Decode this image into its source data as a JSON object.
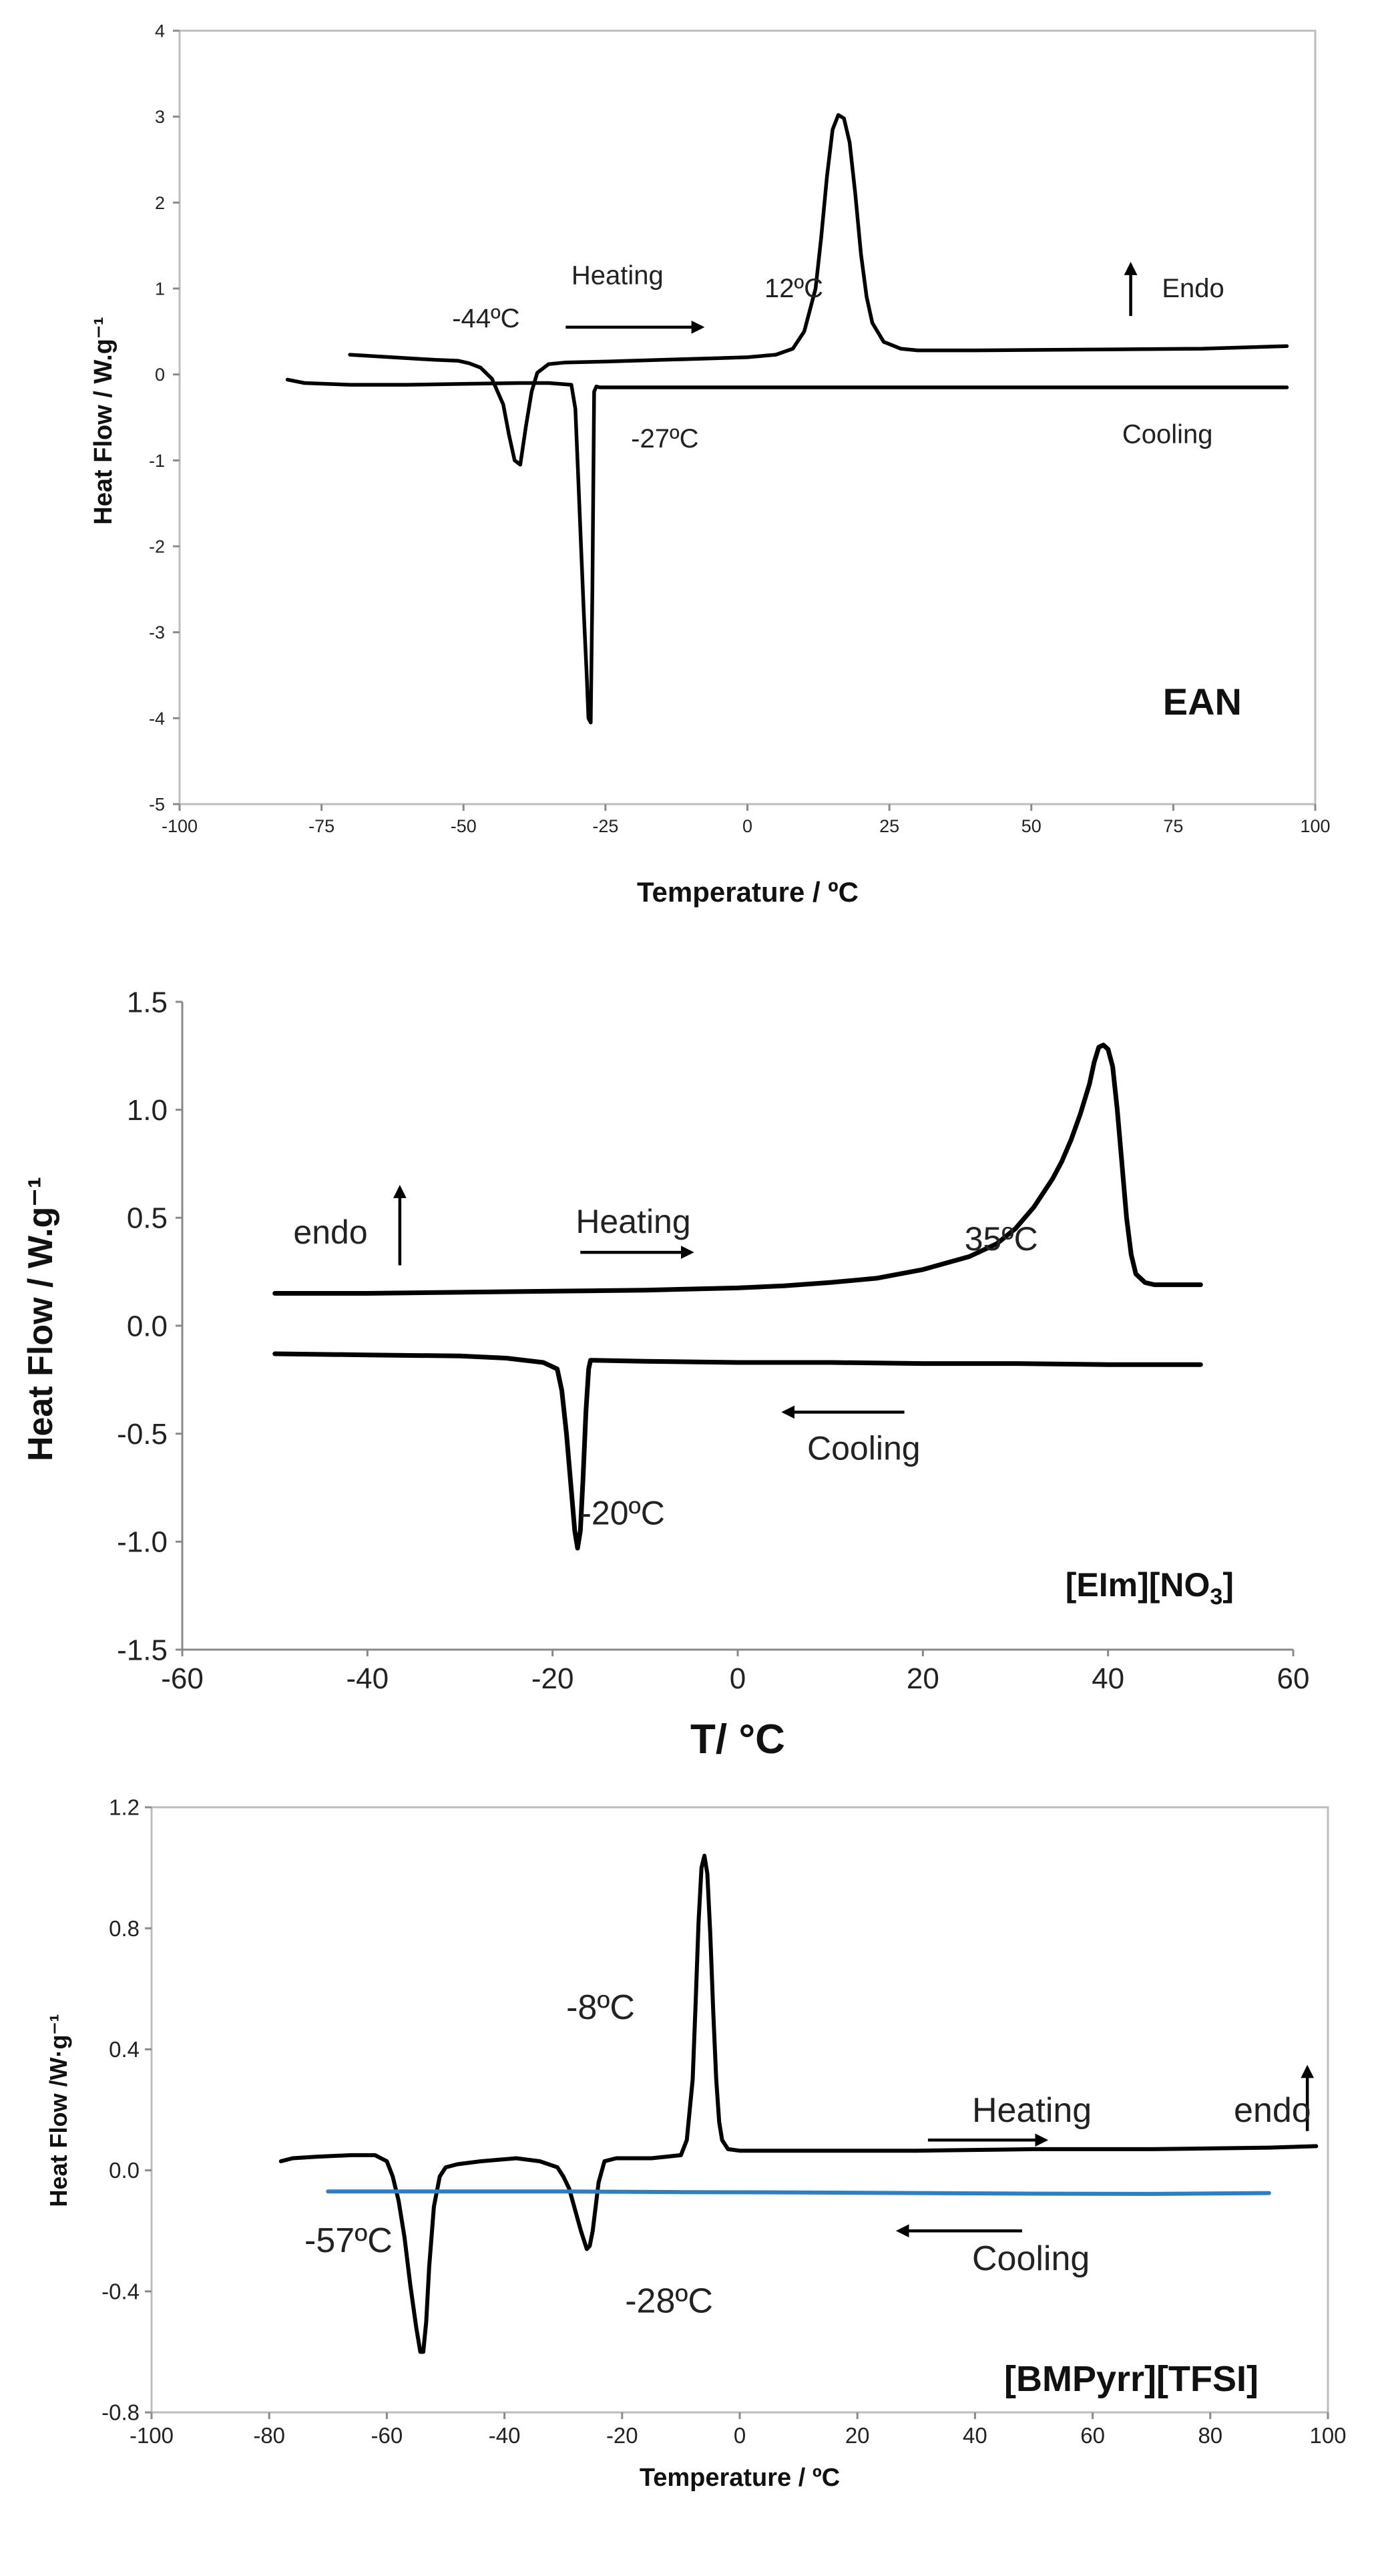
{
  "chart_data": [
    {
      "type": "line",
      "title": "EAN",
      "xlabel": "Temperature / ºC",
      "ylabel": "Heat Flow / W.g⁻¹",
      "xlim": [
        -100,
        100
      ],
      "ylim": [
        -5,
        4
      ],
      "xticks": [
        -100,
        -75,
        -50,
        -25,
        0,
        25,
        50,
        75,
        100
      ],
      "yticks": [
        -5,
        -4,
        -3,
        -2,
        -1,
        0,
        1,
        2,
        3,
        4
      ],
      "grid": false,
      "series": [
        {
          "name": "Heating",
          "color": "#000000",
          "x": [
            -70,
            -60,
            -55,
            -51,
            -49,
            -47,
            -45,
            -43,
            -42,
            -41,
            -40,
            -39,
            -38,
            -37,
            -35,
            -32,
            -25,
            -15,
            -5,
            0,
            5,
            8,
            10,
            12,
            13,
            14,
            15,
            16,
            17,
            18,
            19,
            20,
            21,
            22,
            24,
            27,
            30,
            40,
            60,
            80,
            95
          ],
          "y": [
            0.23,
            0.19,
            0.17,
            0.16,
            0.13,
            0.08,
            -0.05,
            -0.35,
            -0.7,
            -1.0,
            -1.05,
            -0.6,
            -0.2,
            0.02,
            0.12,
            0.14,
            0.15,
            0.17,
            0.19,
            0.2,
            0.23,
            0.3,
            0.5,
            1.0,
            1.6,
            2.3,
            2.85,
            3.02,
            2.98,
            2.7,
            2.1,
            1.4,
            0.9,
            0.6,
            0.38,
            0.3,
            0.28,
            0.28,
            0.29,
            0.3,
            0.33
          ]
        },
        {
          "name": "Cooling",
          "color": "#000000",
          "x": [
            -81,
            -78,
            -70,
            -60,
            -50,
            -40,
            -35,
            -31,
            -30.3,
            -29.8,
            -29.3,
            -28.8,
            -28.3,
            -28.0,
            -27.6,
            -27.3,
            -27.0,
            -26.6,
            -26.0,
            -20,
            0,
            30,
            60,
            95
          ],
          "y": [
            -0.06,
            -0.1,
            -0.12,
            -0.12,
            -0.11,
            -0.1,
            -0.1,
            -0.12,
            -0.4,
            -1.2,
            -2.0,
            -2.8,
            -3.5,
            -4.0,
            -4.05,
            -2.5,
            -0.2,
            -0.14,
            -0.15,
            -0.15,
            -0.15,
            -0.15,
            -0.15,
            -0.15
          ]
        }
      ],
      "annotations": [
        {
          "text": "-44ºC",
          "x": -52,
          "y": 0.55
        },
        {
          "text": "Heating",
          "x": -31,
          "y": 1.05
        },
        {
          "text": "12ºC",
          "x": 3,
          "y": 0.9
        },
        {
          "text": "Endo",
          "x": 73,
          "y": 0.9
        },
        {
          "text": "-27ºC",
          "x": -20.5,
          "y": -0.85
        },
        {
          "text": "Cooling",
          "x": 66,
          "y": -0.8
        }
      ],
      "arrows": [
        {
          "label": "heating-arrow",
          "from": [
            -32,
            0.55
          ],
          "to": [
            -8,
            0.55
          ]
        },
        {
          "label": "endo-arrow",
          "from": [
            67.5,
            0.68
          ],
          "to": [
            67.5,
            1.28
          ]
        }
      ]
    },
    {
      "type": "line",
      "title": "[EIm][NO3]",
      "xlabel": "T/ °C",
      "ylabel": "Heat Flow / W.g⁻¹",
      "xlim": [
        -60,
        60
      ],
      "ylim": [
        -1.5,
        1.5
      ],
      "xticks": [
        -60,
        -40,
        -20,
        0,
        20,
        40,
        60
      ],
      "yticks": [
        -1.5,
        -1.0,
        -0.5,
        0.0,
        0.5,
        1.0,
        1.5
      ],
      "grid": false,
      "series": [
        {
          "name": "Heating",
          "color": "#000000",
          "x": [
            -50,
            -40,
            -30,
            -20,
            -10,
            0,
            5,
            10,
            15,
            20,
            25,
            28,
            30,
            32,
            34,
            35,
            36,
            37,
            38,
            38.5,
            39,
            39.5,
            40,
            40.5,
            41,
            41.5,
            42,
            42.5,
            43,
            44,
            45,
            47,
            50
          ],
          "y": [
            0.15,
            0.15,
            0.155,
            0.16,
            0.165,
            0.175,
            0.185,
            0.2,
            0.22,
            0.26,
            0.32,
            0.38,
            0.45,
            0.55,
            0.68,
            0.76,
            0.86,
            0.98,
            1.12,
            1.22,
            1.29,
            1.3,
            1.28,
            1.2,
            1.0,
            0.75,
            0.5,
            0.33,
            0.24,
            0.2,
            0.19,
            0.19,
            0.19
          ]
        },
        {
          "name": "Cooling",
          "color": "#000000",
          "x": [
            -50,
            -40,
            -30,
            -25,
            -21,
            -19.5,
            -19,
            -18.5,
            -18,
            -17.6,
            -17.3,
            -17.0,
            -16.7,
            -16.4,
            -16.1,
            -15.9,
            -15.6,
            -10,
            0,
            10,
            20,
            30,
            40,
            50
          ],
          "y": [
            -0.13,
            -0.135,
            -0.14,
            -0.15,
            -0.17,
            -0.2,
            -0.3,
            -0.5,
            -0.75,
            -0.95,
            -1.03,
            -0.95,
            -0.7,
            -0.4,
            -0.2,
            -0.16,
            -0.16,
            -0.165,
            -0.17,
            -0.17,
            -0.175,
            -0.175,
            -0.18,
            -0.18
          ]
        }
      ],
      "annotations": [
        {
          "text": "endo",
          "x": -48,
          "y": 0.38
        },
        {
          "text": "Heating",
          "x": -17.5,
          "y": 0.43
        },
        {
          "text": "35ºC",
          "x": 24.5,
          "y": 0.35
        },
        {
          "text": "Cooling",
          "x": 7.5,
          "y": -0.62
        },
        {
          "text": "-20ºC",
          "x": -17,
          "y": -0.92
        }
      ],
      "arrows": [
        {
          "label": "endo-arrow",
          "from": [
            -36.5,
            0.28
          ],
          "to": [
            -36.5,
            0.64
          ]
        },
        {
          "label": "heating-arrow",
          "from": [
            -17,
            0.34
          ],
          "to": [
            -5,
            0.34
          ]
        },
        {
          "label": "cooling-arrow",
          "from": [
            18,
            -0.4
          ],
          "to": [
            5,
            -0.4
          ]
        }
      ]
    },
    {
      "type": "line",
      "title": "[BMPyrr][TFSI]",
      "xlabel": "Temperature / ºC",
      "ylabel": "Heat Flow /W·g⁻¹",
      "xlim": [
        -100,
        100
      ],
      "ylim": [
        -0.8,
        1.2
      ],
      "xticks": [
        -100,
        -80,
        -60,
        -40,
        -20,
        0,
        20,
        40,
        60,
        80,
        100
      ],
      "yticks": [
        -0.8,
        -0.4,
        0.0,
        0.4,
        0.8,
        1.2
      ],
      "grid": false,
      "series": [
        {
          "name": "Heating",
          "color": "#000000",
          "x": [
            -78,
            -76,
            -72,
            -66,
            -62,
            -60,
            -59,
            -58,
            -57,
            -56,
            -55,
            -54.3,
            -53.8,
            -53.3,
            -52.8,
            -52,
            -51,
            -50,
            -48,
            -44,
            -38,
            -34,
            -31,
            -30,
            -29,
            -28,
            -27,
            -26,
            -25.5,
            -25,
            -24.5,
            -24,
            -23,
            -21,
            -15,
            -10,
            -9,
            -8,
            -7.5,
            -7,
            -6.5,
            -6,
            -5.5,
            -5,
            -4.5,
            -4,
            -3.5,
            -3,
            -2,
            0,
            10,
            30,
            50,
            70,
            90,
            98
          ],
          "y": [
            0.03,
            0.04,
            0.045,
            0.05,
            0.05,
            0.03,
            -0.02,
            -0.1,
            -0.22,
            -0.38,
            -0.52,
            -0.6,
            -0.6,
            -0.5,
            -0.32,
            -0.12,
            -0.02,
            0.01,
            0.02,
            0.03,
            0.04,
            0.03,
            0.01,
            -0.02,
            -0.06,
            -0.13,
            -0.2,
            -0.26,
            -0.25,
            -0.2,
            -0.12,
            -0.04,
            0.03,
            0.04,
            0.04,
            0.05,
            0.1,
            0.3,
            0.55,
            0.82,
            1.0,
            1.04,
            0.98,
            0.78,
            0.52,
            0.3,
            0.16,
            0.1,
            0.07,
            0.065,
            0.065,
            0.065,
            0.07,
            0.07,
            0.075,
            0.08
          ]
        },
        {
          "name": "Cooling",
          "color": "#2d7fc4",
          "x": [
            -70,
            -50,
            -30,
            -10,
            10,
            30,
            50,
            70,
            90
          ],
          "y": [
            -0.07,
            -0.07,
            -0.07,
            -0.072,
            -0.073,
            -0.075,
            -0.077,
            -0.078,
            -0.075
          ]
        }
      ],
      "annotations": [
        {
          "text": "-8ºC",
          "x": -29.5,
          "y": 0.5
        },
        {
          "text": "Heating",
          "x": 39.5,
          "y": 0.16
        },
        {
          "text": "endo",
          "x": 84,
          "y": 0.16
        },
        {
          "text": "-57ºC",
          "x": -74,
          "y": -0.27
        },
        {
          "text": "Cooling",
          "x": 39.5,
          "y": -0.33
        },
        {
          "text": "-28ºC",
          "x": -19.5,
          "y": -0.47
        }
      ],
      "arrows": [
        {
          "label": "heating-arrow",
          "from": [
            32,
            0.1
          ],
          "to": [
            52,
            0.1
          ]
        },
        {
          "label": "endo-arrow",
          "from": [
            96.5,
            0.13
          ],
          "to": [
            96.5,
            0.34
          ]
        },
        {
          "label": "cooling-arrow",
          "from": [
            48,
            -0.2
          ],
          "to": [
            27,
            -0.2
          ]
        }
      ]
    }
  ]
}
